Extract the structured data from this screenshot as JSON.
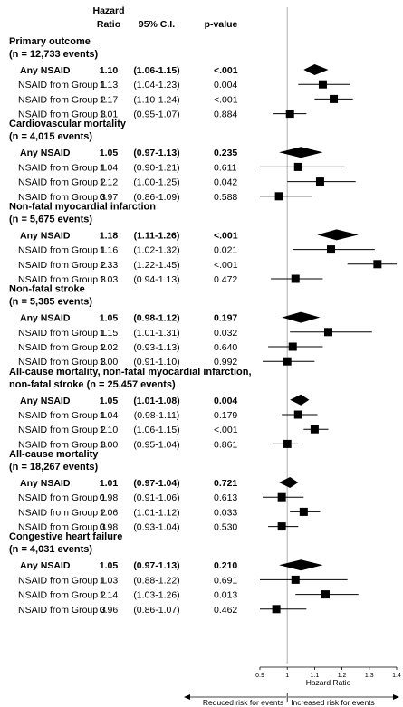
{
  "header": {
    "hr_line1": "Hazard",
    "hr_line2": "Ratio",
    "ci": "95% C.I.",
    "p": "p-value"
  },
  "chart_data": {
    "type": "forest",
    "xlabel": "Hazard Ratio",
    "xlim": [
      0.9,
      1.4
    ],
    "xticks": [
      "0.9",
      "1",
      "1.1",
      "1.2",
      "1.3",
      "1.4"
    ],
    "reference_line": 1,
    "left_direction": "Reduced risk for events",
    "right_direction": "Increased risk for events",
    "sections": [
      {
        "title": [
          "Primary outcome",
          "(n = 12,733 events)"
        ],
        "rows": [
          {
            "label": "Any NSAID",
            "hr": 1.1,
            "lo": 1.06,
            "hi": 1.15,
            "hr_text": "1.10",
            "ci_text": "(1.06-1.15)",
            "p_text": "<.001",
            "summary": true
          },
          {
            "label": "NSAID from Group 1",
            "hr": 1.13,
            "lo": 1.04,
            "hi": 1.23,
            "hr_text": "1.13",
            "ci_text": "(1.04-1.23)",
            "p_text": "0.004",
            "summary": false
          },
          {
            "label": "NSAID from Group 2",
            "hr": 1.17,
            "lo": 1.1,
            "hi": 1.24,
            "hr_text": "1.17",
            "ci_text": "(1.10-1.24)",
            "p_text": "<.001",
            "summary": false
          },
          {
            "label": "NSAID from Group 3",
            "hr": 1.01,
            "lo": 0.95,
            "hi": 1.07,
            "hr_text": "1.01",
            "ci_text": "(0.95-1.07)",
            "p_text": "0.884",
            "summary": false
          }
        ]
      },
      {
        "title": [
          "Cardiovascular mortality",
          "(n = 4,015 events)"
        ],
        "rows": [
          {
            "label": "Any NSAID",
            "hr": 1.05,
            "lo": 0.97,
            "hi": 1.13,
            "hr_text": "1.05",
            "ci_text": "(0.97-1.13)",
            "p_text": "0.235",
            "summary": true
          },
          {
            "label": "NSAID from Group 1",
            "hr": 1.04,
            "lo": 0.9,
            "hi": 1.21,
            "hr_text": "1.04",
            "ci_text": "(0.90-1.21)",
            "p_text": "0.611",
            "summary": false
          },
          {
            "label": "NSAID from Group 2",
            "hr": 1.12,
            "lo": 1.0,
            "hi": 1.25,
            "hr_text": "1.12",
            "ci_text": "(1.00-1.25)",
            "p_text": "0.042",
            "summary": false
          },
          {
            "label": "NSAID from Group 3",
            "hr": 0.97,
            "lo": 0.86,
            "hi": 1.09,
            "hr_text": "0.97",
            "ci_text": "(0.86-1.09)",
            "p_text": "0.588",
            "summary": false
          }
        ]
      },
      {
        "title": [
          "Non-fatal myocardial infarction",
          "(n = 5,675 events)"
        ],
        "rows": [
          {
            "label": "Any NSAID",
            "hr": 1.18,
            "lo": 1.11,
            "hi": 1.26,
            "hr_text": "1.18",
            "ci_text": "(1.11-1.26)",
            "p_text": "<.001",
            "summary": true
          },
          {
            "label": "NSAID from Group 1",
            "hr": 1.16,
            "lo": 1.02,
            "hi": 1.32,
            "hr_text": "1.16",
            "ci_text": "(1.02-1.32)",
            "p_text": "0.021",
            "summary": false
          },
          {
            "label": "NSAID from Group 2",
            "hr": 1.33,
            "lo": 1.22,
            "hi": 1.45,
            "hr_text": "1.33",
            "ci_text": "(1.22-1.45)",
            "p_text": "<.001",
            "summary": false
          },
          {
            "label": "NSAID from Group 3",
            "hr": 1.03,
            "lo": 0.94,
            "hi": 1.13,
            "hr_text": "1.03",
            "ci_text": "(0.94-1.13)",
            "p_text": "0.472",
            "summary": false
          }
        ]
      },
      {
        "title": [
          "Non-fatal stroke",
          "(n = 5,385 events)"
        ],
        "rows": [
          {
            "label": "Any NSAID",
            "hr": 1.05,
            "lo": 0.98,
            "hi": 1.12,
            "hr_text": "1.05",
            "ci_text": "(0.98-1.12)",
            "p_text": "0.197",
            "summary": true
          },
          {
            "label": "NSAID from Group 1",
            "hr": 1.15,
            "lo": 1.01,
            "hi": 1.31,
            "hr_text": "1.15",
            "ci_text": "(1.01-1.31)",
            "p_text": "0.032",
            "summary": false
          },
          {
            "label": "NSAID from Group 2",
            "hr": 1.02,
            "lo": 0.93,
            "hi": 1.13,
            "hr_text": "1.02",
            "ci_text": "(0.93-1.13)",
            "p_text": "0.640",
            "summary": false
          },
          {
            "label": "NSAID from Group 3",
            "hr": 1.0,
            "lo": 0.91,
            "hi": 1.1,
            "hr_text": "1.00",
            "ci_text": "(0.91-1.10)",
            "p_text": "0.992",
            "summary": false
          }
        ]
      },
      {
        "title": [
          "All-cause mortality, non-fatal myocardial infarction,",
          "non-fatal stroke (n = 25,457 events)"
        ],
        "rows": [
          {
            "label": "Any NSAID",
            "hr": 1.05,
            "lo": 1.01,
            "hi": 1.08,
            "hr_text": "1.05",
            "ci_text": "(1.01-1.08)",
            "p_text": "0.004",
            "summary": true
          },
          {
            "label": "NSAID from Group 1",
            "hr": 1.04,
            "lo": 0.98,
            "hi": 1.11,
            "hr_text": "1.04",
            "ci_text": "(0.98-1.11)",
            "p_text": "0.179",
            "summary": false
          },
          {
            "label": "NSAID from Group 2",
            "hr": 1.1,
            "lo": 1.06,
            "hi": 1.15,
            "hr_text": "1.10",
            "ci_text": "(1.06-1.15)",
            "p_text": "<.001",
            "summary": false
          },
          {
            "label": "NSAID from Group 3",
            "hr": 1.0,
            "lo": 0.95,
            "hi": 1.04,
            "hr_text": "1.00",
            "ci_text": "(0.95-1.04)",
            "p_text": "0.861",
            "summary": false
          }
        ]
      },
      {
        "title": [
          "All-cause mortality",
          "(n = 18,267 events)"
        ],
        "rows": [
          {
            "label": "Any NSAID",
            "hr": 1.01,
            "lo": 0.97,
            "hi": 1.04,
            "hr_text": "1.01",
            "ci_text": "(0.97-1.04)",
            "p_text": "0.721",
            "summary": true
          },
          {
            "label": "NSAID from Group 1",
            "hr": 0.98,
            "lo": 0.91,
            "hi": 1.06,
            "hr_text": "0.98",
            "ci_text": "(0.91-1.06)",
            "p_text": "0.613",
            "summary": false
          },
          {
            "label": "NSAID from Group 2",
            "hr": 1.06,
            "lo": 1.01,
            "hi": 1.12,
            "hr_text": "1.06",
            "ci_text": "(1.01-1.12)",
            "p_text": "0.033",
            "summary": false
          },
          {
            "label": "NSAID from Group 3",
            "hr": 0.98,
            "lo": 0.93,
            "hi": 1.04,
            "hr_text": "0.98",
            "ci_text": "(0.93-1.04)",
            "p_text": "0.530",
            "summary": false
          }
        ]
      },
      {
        "title": [
          "Congestive heart failure",
          "(n = 4,031 events)"
        ],
        "rows": [
          {
            "label": "Any NSAID",
            "hr": 1.05,
            "lo": 0.97,
            "hi": 1.13,
            "hr_text": "1.05",
            "ci_text": "(0.97-1.13)",
            "p_text": "0.210",
            "summary": true
          },
          {
            "label": "NSAID from Group 1",
            "hr": 1.03,
            "lo": 0.88,
            "hi": 1.22,
            "hr_text": "1.03",
            "ci_text": "(0.88-1.22)",
            "p_text": "0.691",
            "summary": false
          },
          {
            "label": "NSAID from Group 2",
            "hr": 1.14,
            "lo": 1.03,
            "hi": 1.26,
            "hr_text": "1.14",
            "ci_text": "(1.03-1.26)",
            "p_text": "0.013",
            "summary": false
          },
          {
            "label": "NSAID from Group 3",
            "hr": 0.96,
            "lo": 0.86,
            "hi": 1.07,
            "hr_text": "0.96",
            "ci_text": "(0.86-1.07)",
            "p_text": "0.462",
            "summary": false
          }
        ]
      }
    ]
  }
}
